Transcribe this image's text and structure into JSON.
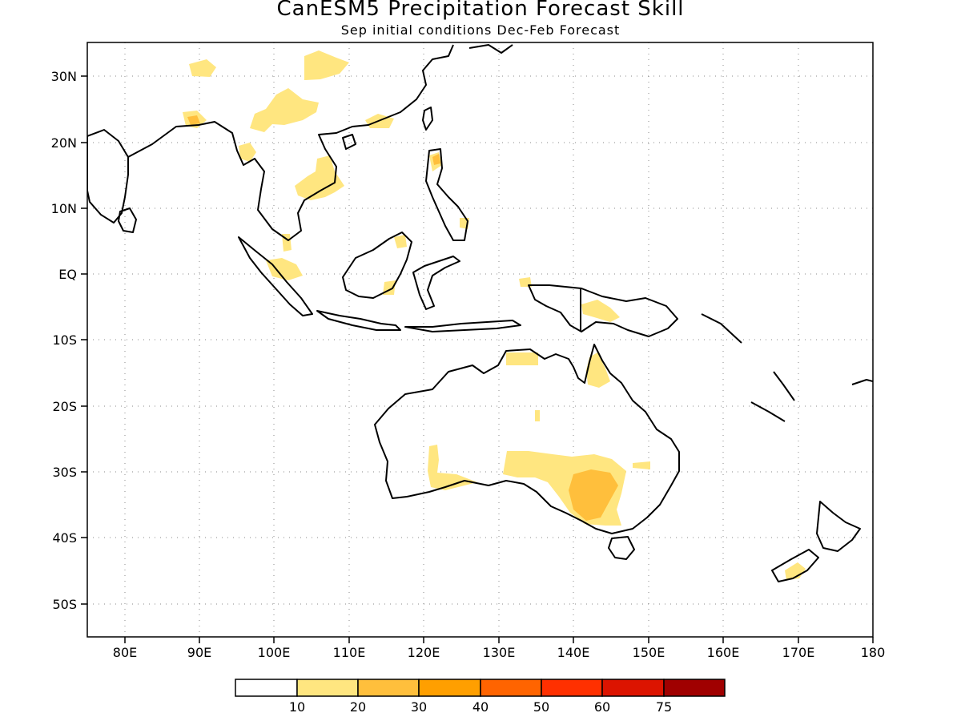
{
  "title": "CanESM5 Precipitation Forecast Skill",
  "subtitle": "Sep initial conditions  Dec-Feb Forecast",
  "colors": {
    "c0": "#ffffff",
    "c10": "#ffe680",
    "c20": "#ffbf3c",
    "c30": "#ff9f00",
    "c40": "#ff6400",
    "c50": "#ff3000",
    "c60": "#dc1400",
    "c75": "#a00000"
  },
  "map": {
    "lon_range": [
      75,
      180
    ],
    "lat_range": [
      -55,
      35
    ],
    "lat_ticks": [
      "30N",
      "20N",
      "10N",
      "EQ",
      "10S",
      "20S",
      "30S",
      "40S",
      "50S"
    ],
    "lon_ticks": [
      "80E",
      "90E",
      "100E",
      "110E",
      "120E",
      "130E",
      "140E",
      "150E",
      "160E",
      "170E",
      "180"
    ],
    "grid": "dotted"
  },
  "colorbar": {
    "labels": [
      "10",
      "20",
      "30",
      "40",
      "50",
      "60",
      "75"
    ]
  }
}
